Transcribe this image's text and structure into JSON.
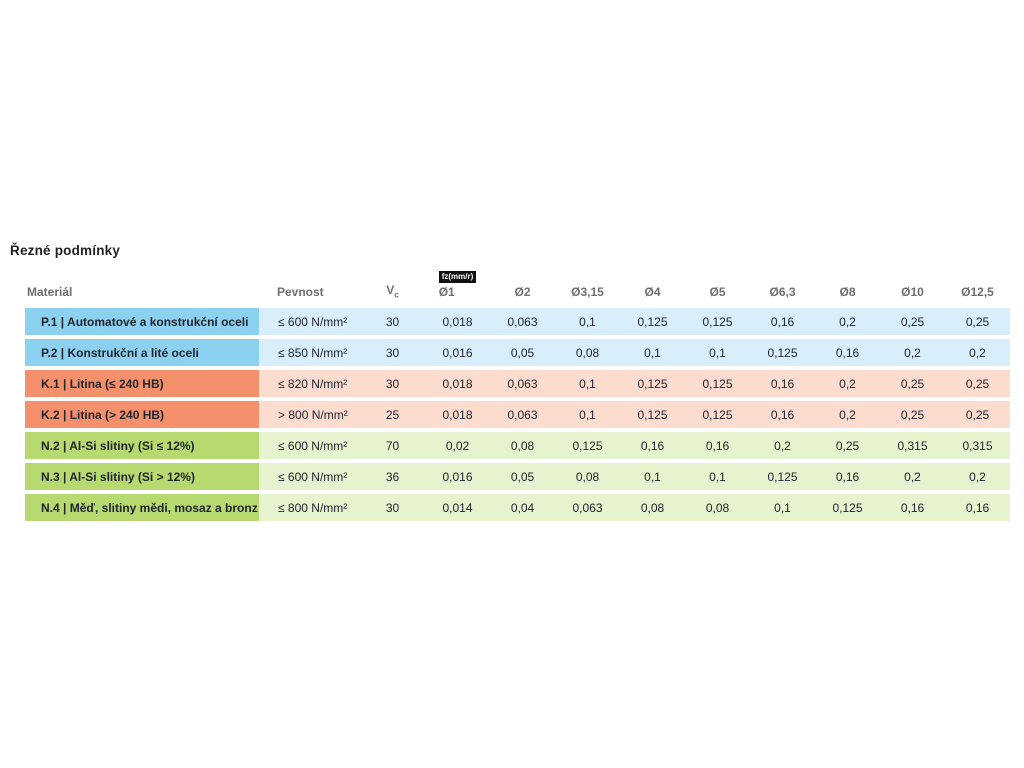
{
  "page": {
    "title": "Řezné podmínky"
  },
  "colors": {
    "blue_dark": "#8CD1F0",
    "blue_light": "#D8EEFA",
    "salmon_dark": "#F4906B",
    "salmon_light": "#FBDCCE",
    "green_dark": "#B6DA70",
    "green_light": "#E7F2CF",
    "badge_bg": "#111111",
    "text_dark": "#20252e",
    "header_gray": "#6e6e72"
  },
  "table": {
    "headers": {
      "material": "Materiál",
      "strength": "Pevnost",
      "vc": "V",
      "vc_sub": "c",
      "fz_badge": "fz(mm/r)",
      "diameters": [
        "Ø1",
        "Ø2",
        "Ø3,15",
        "Ø4",
        "Ø5",
        "Ø6,3",
        "Ø8",
        "Ø10",
        "Ø12,5"
      ]
    },
    "rows": [
      {
        "group": "P",
        "material": "P.1 | Automatové a konstrukční oceli",
        "strength": "≤ 600 N/mm²",
        "vc": "30",
        "values": [
          "0,018",
          "0,063",
          "0,1",
          "0,125",
          "0,125",
          "0,16",
          "0,2",
          "0,25",
          "0,25"
        ]
      },
      {
        "group": "P",
        "material": "P.2 | Konstrukční a lité oceli",
        "strength": "≤ 850 N/mm²",
        "vc": "30",
        "values": [
          "0,016",
          "0,05",
          "0,08",
          "0,1",
          "0,1",
          "0,125",
          "0,16",
          "0,2",
          "0,2"
        ]
      },
      {
        "group": "K",
        "material": "K.1 | Litina (≤ 240 HB)",
        "strength": "≤ 820 N/mm²",
        "vc": "30",
        "values": [
          "0,018",
          "0,063",
          "0,1",
          "0,125",
          "0,125",
          "0,16",
          "0,2",
          "0,25",
          "0,25"
        ]
      },
      {
        "group": "K",
        "material": "K.2 | Litina (> 240 HB)",
        "strength": "> 800 N/mm²",
        "vc": "25",
        "values": [
          "0,018",
          "0,063",
          "0,1",
          "0,125",
          "0,125",
          "0,16",
          "0,2",
          "0,25",
          "0,25"
        ]
      },
      {
        "group": "N",
        "material": "N.2 | Al-Si slitiny (Si ≤ 12%)",
        "strength": "≤ 600 N/mm²",
        "vc": "70",
        "values": [
          "0,02",
          "0,08",
          "0,125",
          "0,16",
          "0,16",
          "0,2",
          "0,25",
          "0,315",
          "0,315"
        ]
      },
      {
        "group": "N",
        "material": "N.3 | Al-Si slitiny (Si > 12%)",
        "strength": "≤ 600 N/mm²",
        "vc": "36",
        "values": [
          "0,016",
          "0,05",
          "0,08",
          "0,1",
          "0,1",
          "0,125",
          "0,16",
          "0,2",
          "0,2"
        ]
      },
      {
        "group": "N",
        "material": "N.4 | Měď, slitiny mědi, mosaz a bronz",
        "strength": "≤ 800 N/mm²",
        "vc": "30",
        "values": [
          "0,014",
          "0,04",
          "0,063",
          "0,08",
          "0,08",
          "0,1",
          "0,125",
          "0,16",
          "0,16"
        ]
      }
    ]
  }
}
